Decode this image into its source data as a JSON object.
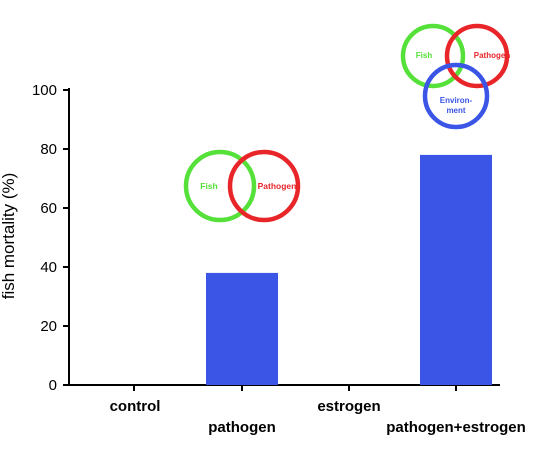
{
  "chart_data": {
    "type": "bar",
    "ylabel": "fish mortality (%)",
    "ylim": [
      0,
      100
    ],
    "yticks": [
      "0",
      "20",
      "40",
      "60",
      "80",
      "100"
    ],
    "categories": [
      "control",
      "pathogen",
      "estrogen",
      "pathogen+estrogen"
    ],
    "values": [
      0,
      38,
      0,
      78
    ],
    "bar_color": "#3b55e6",
    "grid": false
  },
  "annotations": {
    "venn_two": {
      "labels": [
        "Fish",
        "Pathogen"
      ],
      "colors": [
        "#55e03a",
        "#e8262a"
      ]
    },
    "venn_three": {
      "labels": [
        "Fish",
        "Pathogen",
        "Environ-",
        "ment"
      ],
      "colors": [
        "#55e03a",
        "#e8262a",
        "#3b55e6"
      ]
    }
  }
}
